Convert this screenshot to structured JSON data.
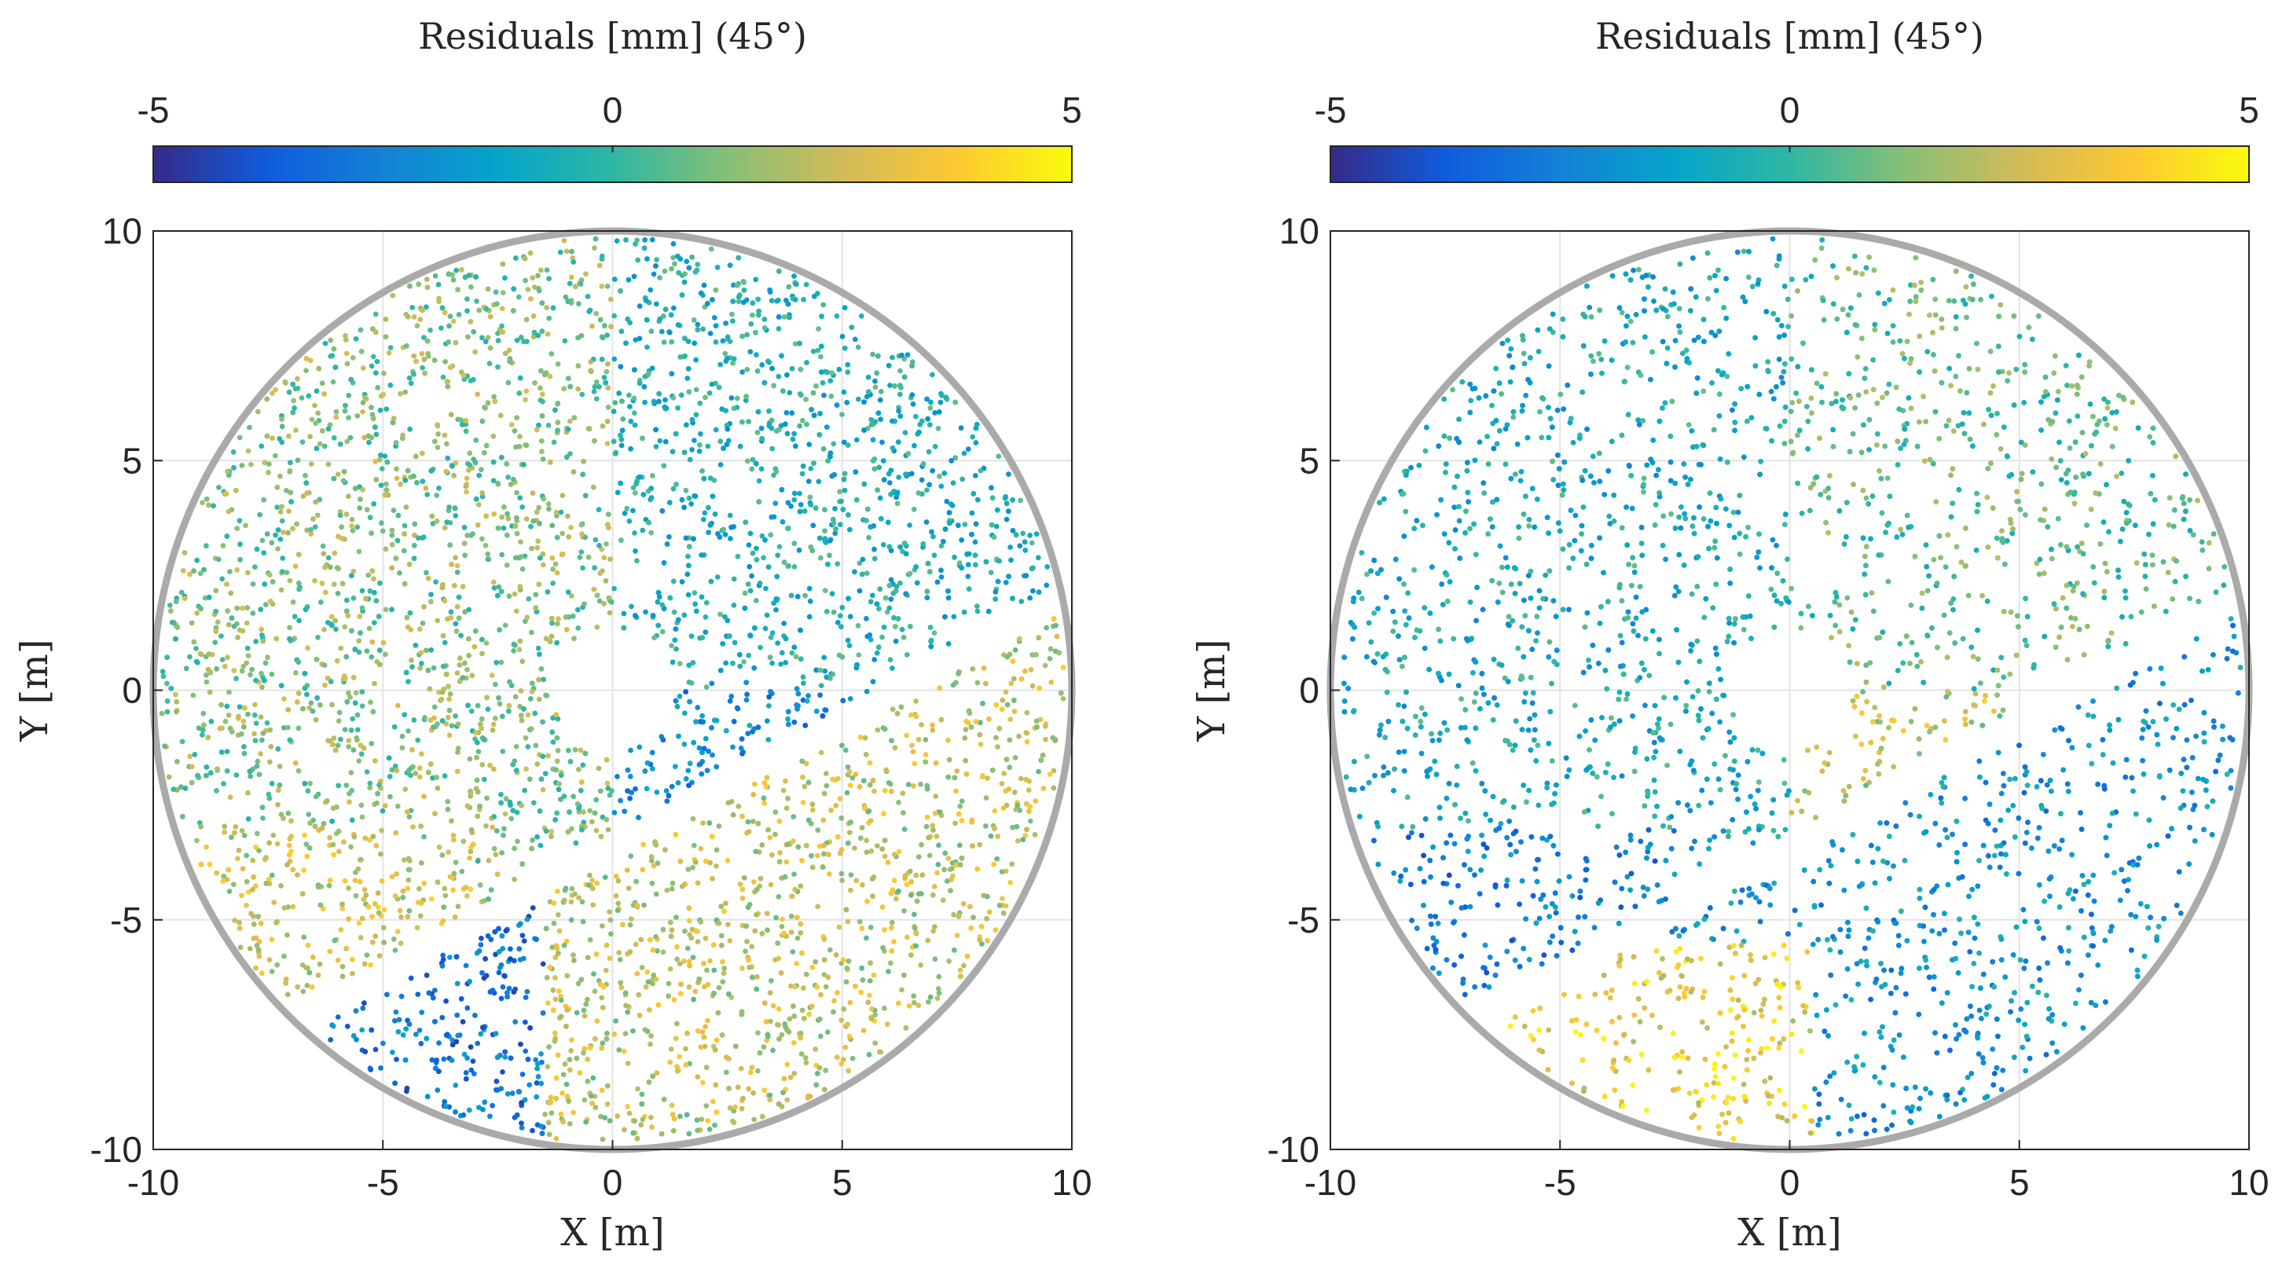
{
  "chart_data": [
    {
      "type": "scatter",
      "title": "",
      "xlabel": "X [m]",
      "ylabel": "Y [m]",
      "xlim": [
        -10,
        10
      ],
      "ylim": [
        -10,
        10
      ],
      "xticks": [
        "-10",
        "-5",
        "0",
        "5",
        "10"
      ],
      "yticks": [
        "10",
        "5",
        "0",
        "-5",
        "-10"
      ],
      "grid": true,
      "colorbar": {
        "label": "Residuals [mm] (45°)",
        "ticks": [
          "-5",
          "0",
          "5"
        ],
        "range": [
          -5,
          5
        ],
        "placement": "top"
      },
      "dish_radius": 10,
      "hub_radius": 1.3,
      "description_regions": {
        "upper_left_mean": 1.2,
        "upper_right_mean": -0.6,
        "lower_left_mean": 2.4,
        "lower_center_mean": -2.8,
        "lower_right_mean": 2.2
      }
    },
    {
      "type": "scatter",
      "title": "",
      "xlabel": "X [m]",
      "ylabel": "Y [m]",
      "xlim": [
        -10,
        10
      ],
      "ylim": [
        -10,
        10
      ],
      "xticks": [
        "-10",
        "-5",
        "0",
        "5",
        "10"
      ],
      "yticks": [
        "10",
        "5",
        "0",
        "-5",
        "-10"
      ],
      "grid": true,
      "colorbar": {
        "label": "Residuals [mm] (45°)",
        "ticks": [
          "-5",
          "0",
          "5"
        ],
        "range": [
          -5,
          5
        ],
        "placement": "top"
      },
      "dish_radius": 10,
      "hub_radius": 1.3,
      "description_regions": {
        "upper_left_mean": -0.8,
        "upper_right_mean": 0.6,
        "lower_left_mean": -2.6,
        "lower_center_mean": 3.4,
        "lower_right_mean": -1.8
      }
    }
  ],
  "colors": {
    "parula": [
      "#352a87",
      "#0f5cdd",
      "#1481d6",
      "#06a4ca",
      "#2eb7a4",
      "#87bf77",
      "#d1bb59",
      "#fec832",
      "#f9fb0e"
    ],
    "rim": "#aaaaaa",
    "grid": "#e3e3e3",
    "axis": "#262626"
  }
}
